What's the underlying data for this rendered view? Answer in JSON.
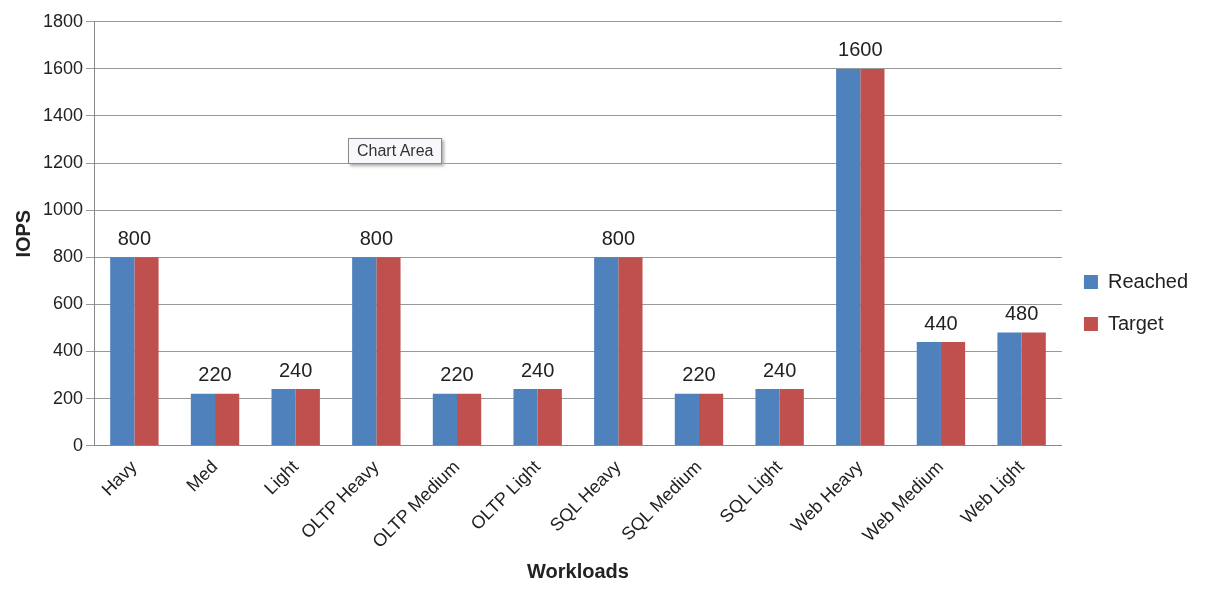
{
  "chart_data": {
    "type": "bar",
    "xlabel": "Workloads",
    "ylabel": "IOPS",
    "categories": [
      "Havy",
      "Med",
      "Light",
      "OLTP Heavy",
      "OLTP Medium",
      "OLTP Light",
      "SQL Heavy",
      "SQL Medium",
      "SQL Light",
      "Web Heavy",
      "Web Medium",
      "Web Light"
    ],
    "series": [
      {
        "name": "Reached",
        "color": "#4f81bd",
        "values": [
          800,
          220,
          240,
          800,
          220,
          240,
          800,
          220,
          240,
          1600,
          440,
          480
        ],
        "value_labels": [
          "800",
          "220",
          "240",
          "800",
          "220",
          "240",
          "800",
          "220",
          "240",
          "1600",
          "440",
          "480"
        ]
      },
      {
        "name": "Target",
        "color": "#c0504d",
        "values": [
          800,
          220,
          240,
          800,
          220,
          240,
          800,
          220,
          240,
          1600,
          440,
          480
        ]
      }
    ],
    "ylim": [
      0,
      1800
    ],
    "yticks": [
      0,
      200,
      400,
      600,
      800,
      1000,
      1200,
      1400,
      1600,
      1800
    ],
    "grid": "y",
    "legend": "right",
    "annotations": [
      "Chart Area"
    ]
  }
}
